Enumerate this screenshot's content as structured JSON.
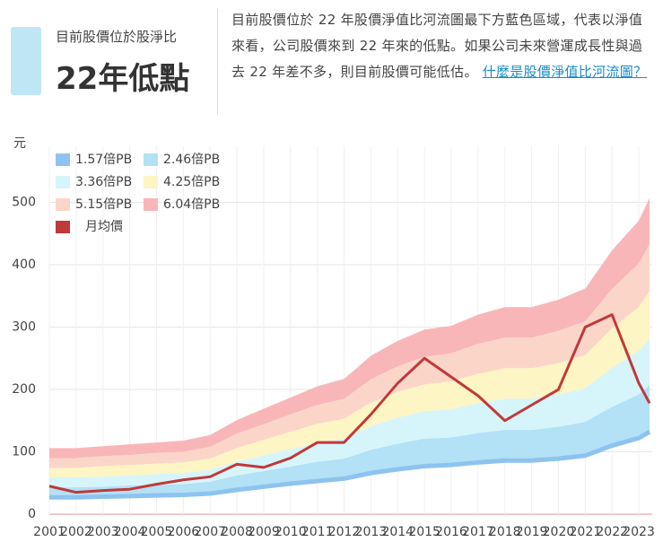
{
  "header": {
    "label": "目前股價位於股淨比",
    "value": "22年低點",
    "description": "目前股價位於 22 年股價淨值比河流圖最下方藍色區域，代表以淨值來看，公司股價來到 22 年來的低點。如果公司未來營運成長性與過去 22 年差不多，則目前股價可能低估。",
    "link": "什麼是股價淨值比河流圖？"
  },
  "chart_data": {
    "type": "river",
    "y_label": "元",
    "x": [
      2001,
      2002,
      2003,
      2004,
      2005,
      2006,
      2007,
      2008,
      2009,
      2010,
      2011,
      2012,
      2013,
      2014,
      2015,
      2016,
      2017,
      2018,
      2019,
      2020,
      2021,
      2022,
      2023,
      2023.4
    ],
    "xlim": [
      2001,
      2023.5
    ],
    "xticks": [
      2001,
      2002,
      2003,
      2004,
      2005,
      2006,
      2007,
      2008,
      2009,
      2010,
      2011,
      2012,
      2013,
      2014,
      2015,
      2016,
      2017,
      2018,
      2019,
      2020,
      2021,
      2022,
      2023
    ],
    "ylim": [
      0,
      590
    ],
    "yticks": [
      0,
      100,
      200,
      300,
      400,
      500
    ],
    "grid": true,
    "series": [
      {
        "name": "1.57倍PB",
        "color": "#8ec3ef",
        "values": [
          27,
          27,
          28,
          29,
          30,
          31,
          33,
          39,
          44,
          49,
          53,
          57,
          66,
          72,
          77,
          79,
          83,
          86,
          86,
          89,
          94,
          110,
          122,
          132
        ]
      },
      {
        "name": "2.46倍PB",
        "color": "#b3e1f5",
        "values": [
          43,
          43,
          44,
          46,
          47,
          48,
          52,
          62,
          69,
          76,
          84,
          89,
          103,
          113,
          121,
          123,
          130,
          135,
          135,
          140,
          148,
          172,
          192,
          207
        ]
      },
      {
        "name": "3.36倍PB",
        "color": "#d6f5fb",
        "values": [
          59,
          59,
          60,
          62,
          64,
          66,
          71,
          84,
          94,
          104,
          114,
          121,
          141,
          155,
          165,
          168,
          178,
          185,
          185,
          192,
          202,
          235,
          262,
          282
        ]
      },
      {
        "name": "4.25倍PB",
        "color": "#fdf5c4",
        "values": [
          74,
          74,
          77,
          79,
          81,
          83,
          89,
          106,
          119,
          132,
          145,
          153,
          179,
          196,
          208,
          213,
          225,
          234,
          234,
          242,
          255,
          298,
          332,
          357
        ]
      },
      {
        "name": "5.15倍PB",
        "color": "#fbd6c8",
        "values": [
          90,
          90,
          93,
          95,
          98,
          100,
          108,
          129,
          144,
          160,
          175,
          185,
          216,
          237,
          252,
          258,
          273,
          283,
          283,
          294,
          309,
          361,
          402,
          433
        ]
      },
      {
        "name": "6.04倍PB",
        "color": "#f9b6b9",
        "values": [
          106,
          106,
          109,
          112,
          115,
          118,
          127,
          151,
          169,
          187,
          205,
          217,
          254,
          278,
          296,
          302,
          320,
          332,
          332,
          344,
          362,
          423,
          471,
          507
        ]
      },
      {
        "name": "月均價",
        "color": "#c0393b",
        "values": [
          45,
          35,
          38,
          40,
          48,
          55,
          60,
          80,
          75,
          90,
          115,
          115,
          160,
          210,
          250,
          220,
          190,
          150,
          175,
          200,
          300,
          320,
          210,
          178
        ]
      }
    ]
  }
}
